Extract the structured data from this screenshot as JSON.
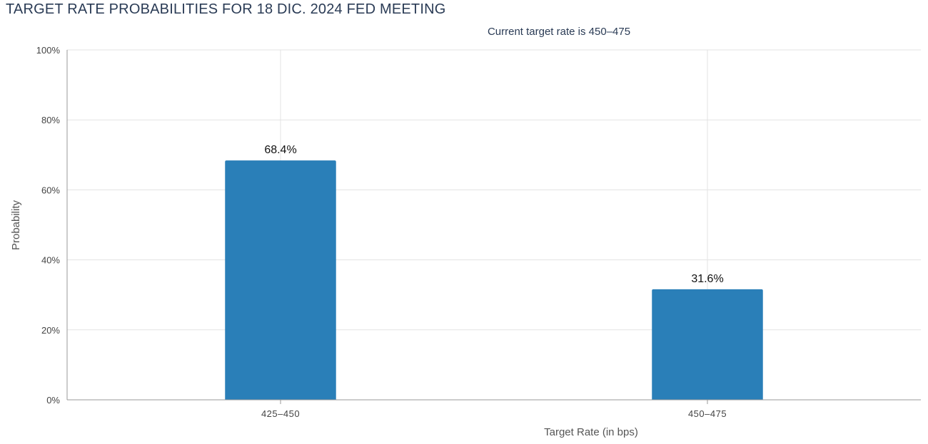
{
  "page_title": "TARGET RATE PROBABILITIES FOR 18 DIC. 2024 FED MEETING",
  "chart_data": {
    "type": "bar",
    "title": "TARGET RATE PROBABILITIES FOR 18 DIC. 2024 FED MEETING",
    "subtitle": "Current target rate is 450–475",
    "categories": [
      "425–450",
      "450–475"
    ],
    "values": [
      68.4,
      31.6
    ],
    "value_labels": [
      "68.4%",
      "31.6%"
    ],
    "xlabel": "Target Rate (in bps)",
    "ylabel": "Probability",
    "ylim": [
      0,
      100
    ],
    "yticks": [
      0,
      20,
      40,
      60,
      80,
      100
    ],
    "ytick_labels": [
      "0%",
      "20%",
      "40%",
      "60%",
      "80%",
      "100%"
    ],
    "grid": true,
    "legend": "none",
    "colors": {
      "bar": "#2a7fb8",
      "grid": "#e3e3e3"
    }
  }
}
